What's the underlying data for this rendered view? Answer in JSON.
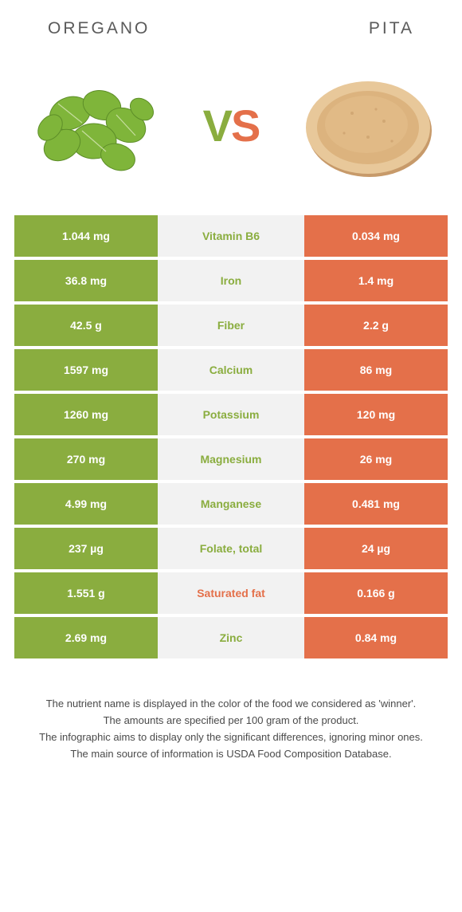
{
  "header": {
    "left_name": "OREGANO",
    "right_name": "PITA"
  },
  "vs": {
    "v": "V",
    "s": "S"
  },
  "colors": {
    "left": "#8aad3f",
    "right": "#e4704a",
    "mid_bg": "#f2f2f2"
  },
  "rows": [
    {
      "left": "1.044 mg",
      "label": "Vitamin B6",
      "right": "0.034 mg",
      "winner": "left"
    },
    {
      "left": "36.8 mg",
      "label": "Iron",
      "right": "1.4 mg",
      "winner": "left"
    },
    {
      "left": "42.5 g",
      "label": "Fiber",
      "right": "2.2 g",
      "winner": "left"
    },
    {
      "left": "1597 mg",
      "label": "Calcium",
      "right": "86 mg",
      "winner": "left"
    },
    {
      "left": "1260 mg",
      "label": "Potassium",
      "right": "120 mg",
      "winner": "left"
    },
    {
      "left": "270 mg",
      "label": "Magnesium",
      "right": "26 mg",
      "winner": "left"
    },
    {
      "left": "4.99 mg",
      "label": "Manganese",
      "right": "0.481 mg",
      "winner": "left"
    },
    {
      "left": "237 µg",
      "label": "Folate, total",
      "right": "24 µg",
      "winner": "left"
    },
    {
      "left": "1.551 g",
      "label": "Saturated fat",
      "right": "0.166 g",
      "winner": "right"
    },
    {
      "left": "2.69 mg",
      "label": "Zinc",
      "right": "0.84 mg",
      "winner": "left"
    }
  ],
  "footer": {
    "l1": "The nutrient name is displayed in the color of the food we considered as 'winner'.",
    "l2": "The amounts are specified per 100 gram of the product.",
    "l3": "The infographic aims to display only the significant differences, ignoring minor ones.",
    "l4": "The main source of information is USDA Food Composition Database."
  }
}
